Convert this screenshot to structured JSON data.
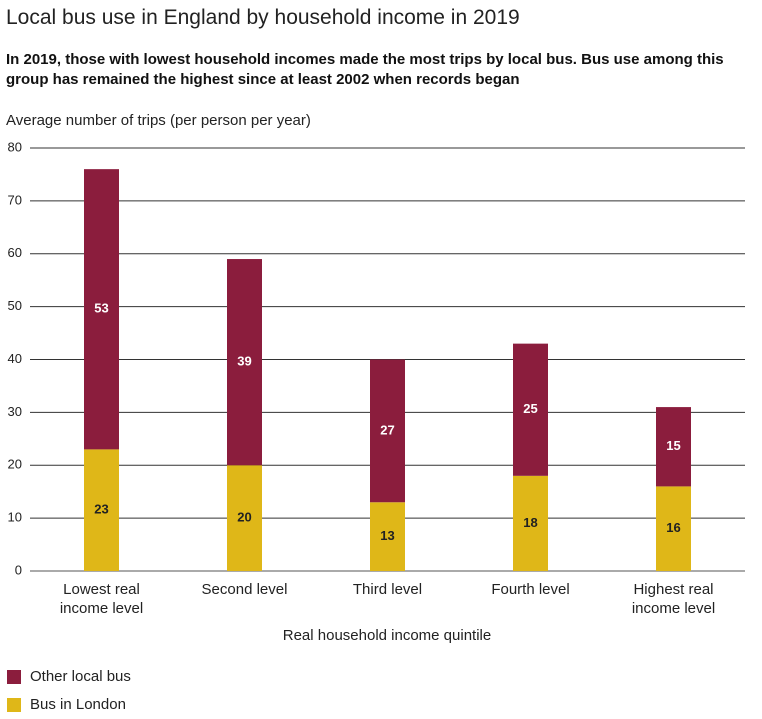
{
  "chart_data": {
    "type": "stacked-bar",
    "title": "Local bus use in England by household income in 2019",
    "subtitle": "In 2019, those with lowest household incomes made the most trips by local bus. Bus use among this group has remained the highest since at least 2002 when records began",
    "y_label": "Average number of trips (per person per year)",
    "x_label": "Real household income quintile",
    "categories": [
      "Lowest real income level",
      "Second level",
      "Third level",
      "Fourth level",
      "Highest real income level"
    ],
    "series": [
      {
        "name": "Bus in London",
        "color": "#dfb718",
        "label_color": "#222222",
        "values": [
          23,
          20,
          13,
          18,
          16
        ]
      },
      {
        "name": "Other local bus",
        "color": "#8b1d3d",
        "label_color": "#ffffff",
        "values": [
          53,
          39,
          27,
          25,
          15
        ]
      }
    ],
    "ylim": [
      0,
      80
    ],
    "yticks": [
      0,
      10,
      20,
      30,
      40,
      50,
      60,
      70,
      80
    ],
    "grid": true
  }
}
